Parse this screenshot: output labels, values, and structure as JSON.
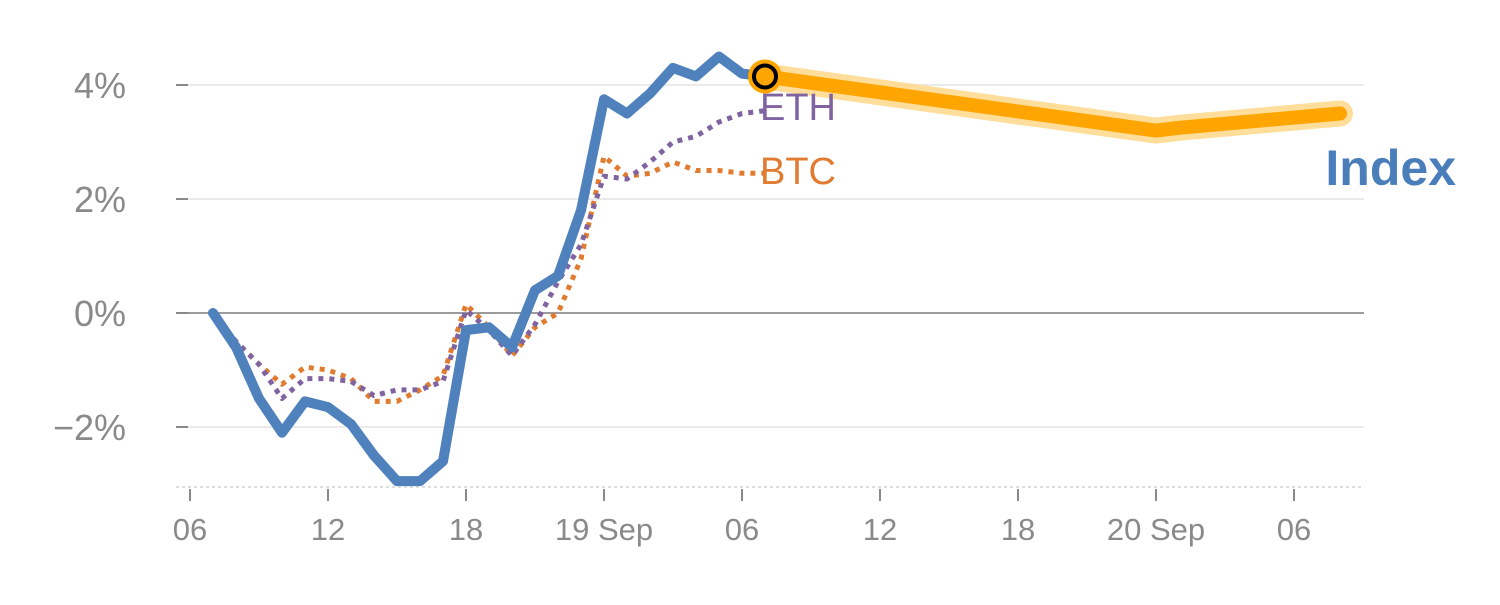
{
  "chart_data": {
    "type": "line",
    "x_unit": "hours",
    "x_ticks": [
      {
        "hour": 0,
        "label": "06"
      },
      {
        "hour": 6,
        "label": "12"
      },
      {
        "hour": 12,
        "label": "18"
      },
      {
        "hour": 18,
        "label": "19 Sep"
      },
      {
        "hour": 24,
        "label": "06"
      },
      {
        "hour": 30,
        "label": "12"
      },
      {
        "hour": 36,
        "label": "18"
      },
      {
        "hour": 42,
        "label": "20 Sep"
      },
      {
        "hour": 48,
        "label": "06"
      }
    ],
    "y_ticks": [
      {
        "value": -2,
        "label": "−2%"
      },
      {
        "value": 0,
        "label": "0%"
      },
      {
        "value": 2,
        "label": "2%"
      },
      {
        "value": 4,
        "label": "4%"
      }
    ],
    "xlim": [
      0,
      51
    ],
    "ylim": [
      -3.05,
      4.7
    ],
    "grid": true,
    "series": [
      {
        "name": "Index",
        "color": "#4f81bd",
        "style": "solid",
        "x": [
          1,
          2,
          3,
          4,
          5,
          6,
          7,
          8,
          9,
          10,
          11,
          12,
          13,
          14,
          15,
          16,
          17,
          18,
          19,
          20,
          21,
          22,
          23,
          24,
          25
        ],
        "y": [
          0.0,
          -0.6,
          -1.5,
          -2.1,
          -1.55,
          -1.65,
          -1.95,
          -2.5,
          -2.95,
          -2.95,
          -2.6,
          -0.3,
          -0.25,
          -0.6,
          0.4,
          0.65,
          1.8,
          3.75,
          3.5,
          3.85,
          4.3,
          4.15,
          4.5,
          4.2,
          4.15
        ]
      },
      {
        "name": "ETH",
        "color": "#8064a2",
        "style": "dotted",
        "x": [
          1,
          2,
          3,
          4,
          5,
          6,
          7,
          8,
          9,
          10,
          11,
          12,
          13,
          14,
          15,
          16,
          17,
          18,
          19,
          20,
          21,
          22,
          23,
          24,
          25
        ],
        "y": [
          0.0,
          -0.5,
          -0.9,
          -1.5,
          -1.15,
          -1.15,
          -1.2,
          -1.45,
          -1.35,
          -1.35,
          -1.2,
          0.05,
          -0.3,
          -0.75,
          -0.2,
          0.55,
          1.2,
          2.4,
          2.35,
          2.65,
          3.0,
          3.1,
          3.35,
          3.5,
          3.55
        ]
      },
      {
        "name": "BTC",
        "color": "#e07b2f",
        "style": "dotted",
        "x": [
          1,
          2,
          3,
          4,
          5,
          6,
          7,
          8,
          9,
          10,
          11,
          12,
          13,
          14,
          15,
          16,
          17,
          18,
          19,
          20,
          21,
          22,
          23,
          24,
          25
        ],
        "y": [
          0.0,
          -0.5,
          -0.9,
          -1.25,
          -0.95,
          -1.0,
          -1.15,
          -1.55,
          -1.55,
          -1.35,
          -1.1,
          0.15,
          -0.25,
          -0.75,
          -0.25,
          0.0,
          0.95,
          2.75,
          2.4,
          2.45,
          2.65,
          2.5,
          2.5,
          2.45,
          2.45
        ]
      },
      {
        "name": "Index",
        "role": "forecast",
        "color": "#ffa500",
        "style": "highlight",
        "x": [
          25,
          42,
          43,
          50
        ],
        "y": [
          4.15,
          3.2,
          3.25,
          3.5
        ]
      }
    ],
    "marker": {
      "x": 25,
      "y": 4.15,
      "color": "#ffa500"
    },
    "labels": {
      "eth": {
        "text": "ETH",
        "color": "#8064a2"
      },
      "btc": {
        "text": "BTC",
        "color": "#e07b2f"
      },
      "index": {
        "text": "Index",
        "color": "#4a7ebb"
      }
    }
  }
}
